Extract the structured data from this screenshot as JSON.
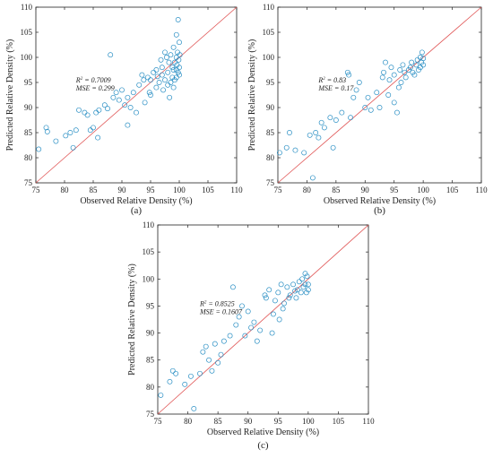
{
  "chart_data": [
    {
      "type": "scatter",
      "panel_label": "(a)",
      "xlabel": "Observed Relative Density (%)",
      "ylabel": "Predicted Relative Density (%)",
      "xlim": [
        75,
        110
      ],
      "ylim": [
        75,
        110
      ],
      "xticks": [
        "75",
        "80",
        "85",
        "90",
        "95",
        "100",
        "105",
        "110"
      ],
      "yticks": [
        "75",
        "80",
        "85",
        "90",
        "95",
        "100",
        "105",
        "110"
      ],
      "annotation": {
        "r2_label": "R",
        "r2_sup": "2",
        "r2_value": " = 0.7009",
        "mse": "MSE = 0.299",
        "anchor": [
          82,
          95
        ]
      },
      "reference_line": "y = x",
      "grid": false,
      "marker": "open-circle",
      "points": [
        [
          75.5,
          81.7
        ],
        [
          76.8,
          86.0
        ],
        [
          77.0,
          85.2
        ],
        [
          78.5,
          83.3
        ],
        [
          80.2,
          84.4
        ],
        [
          81.0,
          85.0
        ],
        [
          81.5,
          82.0
        ],
        [
          82.0,
          85.5
        ],
        [
          82.5,
          89.5
        ],
        [
          83.5,
          89.0
        ],
        [
          84.0,
          88.5
        ],
        [
          84.5,
          85.5
        ],
        [
          85.0,
          86.0
        ],
        [
          85.5,
          89.0
        ],
        [
          85.8,
          84.0
        ],
        [
          86.0,
          89.5
        ],
        [
          87.0,
          90.5
        ],
        [
          87.5,
          89.8
        ],
        [
          88.0,
          100.5
        ],
        [
          88.5,
          92.0
        ],
        [
          89.0,
          93.0
        ],
        [
          89.5,
          91.5
        ],
        [
          90.0,
          93.5
        ],
        [
          90.5,
          90.5
        ],
        [
          91.0,
          86.5
        ],
        [
          91.5,
          90.0
        ],
        [
          92.5,
          89.0
        ],
        [
          93.0,
          94.5
        ],
        [
          93.5,
          96.5
        ],
        [
          94.0,
          91.0
        ],
        [
          94.5,
          96.0
        ],
        [
          95.0,
          95.5
        ],
        [
          95.0,
          92.5
        ],
        [
          95.5,
          97.0
        ],
        [
          96.0,
          97.5
        ],
        [
          96.0,
          94.0
        ],
        [
          96.5,
          95.0
        ],
        [
          96.8,
          99.5
        ],
        [
          97.0,
          96.5
        ],
        [
          97.2,
          93.5
        ],
        [
          97.5,
          95.5
        ],
        [
          97.5,
          101.0
        ],
        [
          97.8,
          100.0
        ],
        [
          98.0,
          94.5
        ],
        [
          98.0,
          97.0
        ],
        [
          98.2,
          99.0
        ],
        [
          98.5,
          95.0
        ],
        [
          98.5,
          100.5
        ],
        [
          98.8,
          96.0
        ],
        [
          98.8,
          98.0
        ],
        [
          99.0,
          94.0
        ],
        [
          99.0,
          97.5
        ],
        [
          99.0,
          102.0
        ],
        [
          99.2,
          95.5
        ],
        [
          99.2,
          99.0
        ],
        [
          99.5,
          96.0
        ],
        [
          99.5,
          97.5
        ],
        [
          99.5,
          100.0
        ],
        [
          99.5,
          104.5
        ],
        [
          99.6,
          98.5
        ],
        [
          99.7,
          101.0
        ],
        [
          99.8,
          97.0
        ],
        [
          99.8,
          107.5
        ],
        [
          99.9,
          99.5
        ],
        [
          100.0,
          96.5
        ],
        [
          100.0,
          98.0
        ],
        [
          100.0,
          103.0
        ],
        [
          100.1,
          100.5
        ],
        [
          98.3,
          92.0
        ],
        [
          97.0,
          98.0
        ],
        [
          96.2,
          96.2
        ],
        [
          94.8,
          93.0
        ],
        [
          93.8,
          95.5
        ],
        [
          92.0,
          93.0
        ],
        [
          91.0,
          92.0
        ]
      ]
    },
    {
      "type": "scatter",
      "panel_label": "(b)",
      "xlabel": "Observed Relative Density (%)",
      "ylabel": "Predicted Relative Density (%)",
      "xlim": [
        75,
        110
      ],
      "ylim": [
        75,
        110
      ],
      "xticks": [
        "75",
        "80",
        "85",
        "90",
        "95",
        "100",
        "105",
        "110"
      ],
      "yticks": [
        "75",
        "80",
        "85",
        "90",
        "95",
        "100",
        "105",
        "110"
      ],
      "annotation": {
        "r2_label": "R",
        "r2_sup": "2",
        "r2_value": " = 0.83",
        "mse": "MSE = 0.17",
        "anchor": [
          82,
          95
        ]
      },
      "reference_line": "y = x",
      "grid": false,
      "marker": "open-circle",
      "points": [
        [
          75.3,
          81.0
        ],
        [
          76.5,
          82.0
        ],
        [
          77.0,
          85.0
        ],
        [
          78.0,
          81.5
        ],
        [
          79.5,
          81.0
        ],
        [
          80.5,
          84.5
        ],
        [
          81.0,
          76.0
        ],
        [
          81.5,
          85.0
        ],
        [
          82.0,
          84.0
        ],
        [
          82.5,
          87.0
        ],
        [
          83.0,
          86.0
        ],
        [
          84.0,
          88.0
        ],
        [
          84.5,
          82.0
        ],
        [
          85.0,
          87.5
        ],
        [
          86.0,
          89.0
        ],
        [
          87.0,
          97.0
        ],
        [
          87.2,
          96.5
        ],
        [
          87.5,
          88.0
        ],
        [
          88.0,
          92.0
        ],
        [
          88.5,
          93.5
        ],
        [
          89.0,
          95.0
        ],
        [
          90.0,
          90.0
        ],
        [
          91.0,
          89.5
        ],
        [
          92.0,
          93.0
        ],
        [
          93.0,
          96.0
        ],
        [
          93.5,
          99.0
        ],
        [
          94.0,
          92.5
        ],
        [
          94.5,
          98.0
        ],
        [
          95.0,
          91.0
        ],
        [
          95.0,
          96.5
        ],
        [
          95.5,
          89.0
        ],
        [
          96.0,
          97.5
        ],
        [
          96.2,
          95.0
        ],
        [
          96.5,
          98.5
        ],
        [
          97.0,
          96.0
        ],
        [
          97.5,
          97.5
        ],
        [
          98.0,
          99.0
        ],
        [
          98.2,
          97.0
        ],
        [
          98.5,
          96.5
        ],
        [
          98.8,
          98.5
        ],
        [
          99.0,
          99.5
        ],
        [
          99.2,
          97.5
        ],
        [
          99.5,
          98.0
        ],
        [
          99.5,
          100.0
        ],
        [
          99.7,
          99.0
        ],
        [
          99.8,
          101.0
        ],
        [
          100.0,
          98.5
        ],
        [
          100.0,
          99.8
        ],
        [
          97.8,
          98.0
        ],
        [
          96.8,
          97.0
        ],
        [
          95.8,
          94.0
        ],
        [
          94.2,
          95.5
        ],
        [
          93.2,
          97.0
        ],
        [
          92.5,
          90.0
        ],
        [
          90.5,
          92.0
        ]
      ]
    },
    {
      "type": "scatter",
      "panel_label": "(c)",
      "xlabel": "Observed Relative Density (%)",
      "ylabel": "Predicted Relative Density (%)",
      "xlim": [
        75,
        110
      ],
      "ylim": [
        75,
        110
      ],
      "xticks": [
        "75",
        "80",
        "85",
        "90",
        "95",
        "100",
        "105",
        "110"
      ],
      "yticks": [
        "75",
        "80",
        "85",
        "90",
        "95",
        "100",
        "105",
        "110"
      ],
      "annotation": {
        "r2_label": "R",
        "r2_sup": "2",
        "r2_value": " = 0.8525",
        "mse": "MSE = 0.1607",
        "anchor": [
          82,
          95
        ]
      },
      "reference_line": "y = x",
      "grid": false,
      "marker": "open-circle",
      "points": [
        [
          75.5,
          78.5
        ],
        [
          77.0,
          81.0
        ],
        [
          77.5,
          83.0
        ],
        [
          78.0,
          82.5
        ],
        [
          79.5,
          80.5
        ],
        [
          80.5,
          82.0
        ],
        [
          81.0,
          76.0
        ],
        [
          82.0,
          82.5
        ],
        [
          82.5,
          86.5
        ],
        [
          83.0,
          87.5
        ],
        [
          83.5,
          85.0
        ],
        [
          84.0,
          83.0
        ],
        [
          84.5,
          88.0
        ],
        [
          85.0,
          84.5
        ],
        [
          85.5,
          86.0
        ],
        [
          86.0,
          88.5
        ],
        [
          87.0,
          89.5
        ],
        [
          87.5,
          98.5
        ],
        [
          88.0,
          91.5
        ],
        [
          88.5,
          93.0
        ],
        [
          89.0,
          95.0
        ],
        [
          89.5,
          89.5
        ],
        [
          90.0,
          94.0
        ],
        [
          91.0,
          92.0
        ],
        [
          92.0,
          90.5
        ],
        [
          93.0,
          96.5
        ],
        [
          93.5,
          98.0
        ],
        [
          94.0,
          90.0
        ],
        [
          94.5,
          96.0
        ],
        [
          95.0,
          97.5
        ],
        [
          95.2,
          92.5
        ],
        [
          95.5,
          99.0
        ],
        [
          96.0,
          95.5
        ],
        [
          96.5,
          98.5
        ],
        [
          97.0,
          97.0
        ],
        [
          97.5,
          99.0
        ],
        [
          98.0,
          96.5
        ],
        [
          98.2,
          98.0
        ],
        [
          98.5,
          99.5
        ],
        [
          98.8,
          97.5
        ],
        [
          99.0,
          100.0
        ],
        [
          99.2,
          98.5
        ],
        [
          99.5,
          99.0
        ],
        [
          99.5,
          101.0
        ],
        [
          99.7,
          97.5
        ],
        [
          99.8,
          100.5
        ],
        [
          100.0,
          99.0
        ],
        [
          100.0,
          98.0
        ],
        [
          97.8,
          97.8
        ],
        [
          96.8,
          96.5
        ],
        [
          95.8,
          94.5
        ],
        [
          94.2,
          93.5
        ],
        [
          92.8,
          97.0
        ],
        [
          91.5,
          88.5
        ],
        [
          90.5,
          91.0
        ]
      ]
    }
  ],
  "colors": {
    "marker": "#2a8fc4",
    "reference_line": "#e05555",
    "axes": "#222222"
  }
}
